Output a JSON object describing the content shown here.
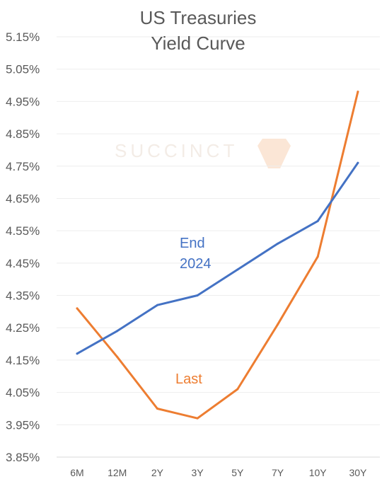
{
  "chart_data": {
    "type": "line",
    "title": [
      "US Treasuries",
      "Yield Curve"
    ],
    "categories": [
      "6M",
      "12M",
      "2Y",
      "3Y",
      "5Y",
      "7Y",
      "10Y",
      "30Y"
    ],
    "ylim": [
      3.85,
      5.15
    ],
    "yticks": [
      "5.15%",
      "5.05%",
      "4.95%",
      "4.85%",
      "4.75%",
      "4.65%",
      "4.55%",
      "4.45%",
      "4.35%",
      "4.25%",
      "4.15%",
      "4.05%",
      "3.95%",
      "3.85%"
    ],
    "ytick_values": [
      5.15,
      5.05,
      4.95,
      4.85,
      4.75,
      4.65,
      4.55,
      4.45,
      4.35,
      4.25,
      4.15,
      4.05,
      3.95,
      3.85
    ],
    "grid": true,
    "series": [
      {
        "name": "End 2024",
        "label_lines": [
          "End",
          "2024"
        ],
        "color": "#4472c4",
        "values": [
          4.17,
          4.24,
          4.32,
          4.35,
          4.43,
          4.51,
          4.58,
          4.76
        ]
      },
      {
        "name": "Last",
        "label_lines": [
          "Last"
        ],
        "color": "#ed7d31",
        "values": [
          4.31,
          4.16,
          4.0,
          3.97,
          4.06,
          4.26,
          4.47,
          4.98
        ]
      }
    ],
    "watermark": "SUCCINCT"
  }
}
